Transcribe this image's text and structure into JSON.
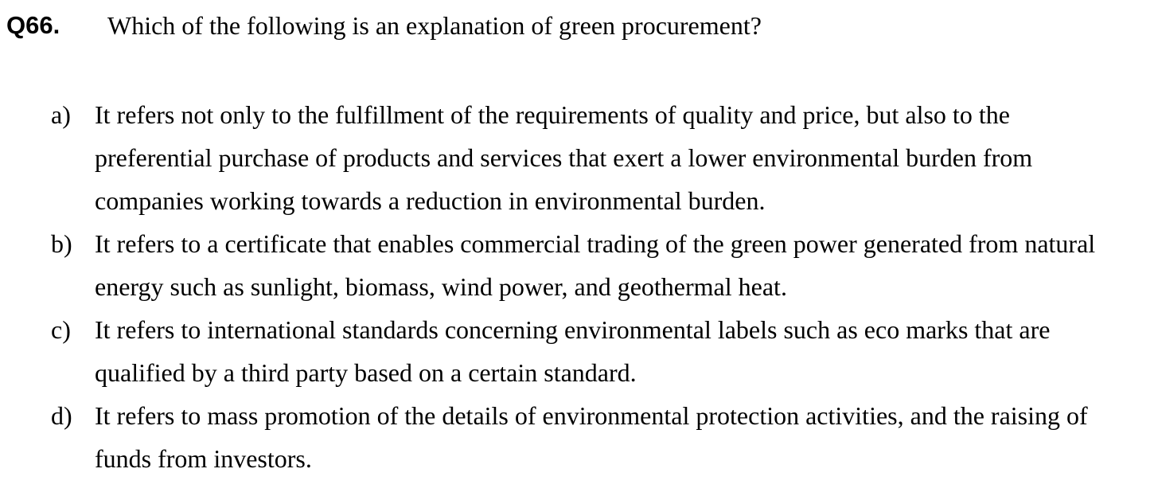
{
  "question": {
    "number": "Q66.",
    "text": "Which of the following is an explanation of green procurement?"
  },
  "options": [
    {
      "letter": "a)",
      "text": "It refers not only to the fulfillment of the requirements of quality and price, but also to the preferential purchase of products and services that exert a lower environmental burden from companies working towards a reduction in environmental burden."
    },
    {
      "letter": "b)",
      "text": "It refers to a certificate that enables commercial trading of the green power generated from natural energy such as sunlight, biomass, wind power, and geothermal heat."
    },
    {
      "letter": "c)",
      "text": "It refers to international standards concerning environmental labels such as eco marks that are qualified by a third party based on a certain standard."
    },
    {
      "letter": "d)",
      "text": "It refers to mass promotion of the details of environmental protection activities, and the raising of funds from investors."
    }
  ]
}
